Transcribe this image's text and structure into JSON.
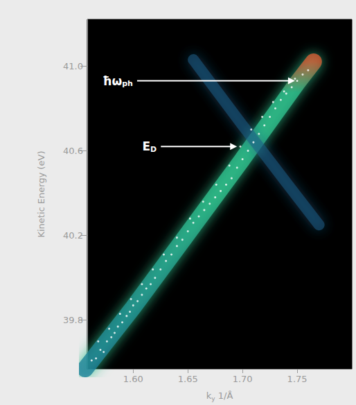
{
  "chart_data": {
    "type": "scatter",
    "x_label": "ky 1/Å",
    "y_label": "Kinetic Energy (eV)",
    "xlim": [
      1.558,
      1.8
    ],
    "ylim": [
      39.57,
      41.22
    ],
    "xticks": [
      {
        "value": 1.6,
        "label": "1.60"
      },
      1.65,
      {
        "value": 1.7,
        "label": "1.70"
      },
      1.75
    ],
    "yticks": [
      {
        "value": 39.8,
        "label": "39.8"
      },
      {
        "value": 40.2,
        "label": "40.2"
      },
      {
        "value": 40.6,
        "label": "40.6"
      },
      {
        "value": 41.0,
        "label": "41.0"
      }
    ],
    "grid": false,
    "series": [
      {
        "type": "line",
        "color": "#2fbf8c",
        "x": [
          1.556,
          1.6,
          1.65,
          1.7,
          1.75,
          1.765
        ],
        "y": [
          39.57,
          39.86,
          40.21,
          40.56,
          40.92,
          41.02
        ]
      },
      {
        "type": "line",
        "color": "#1d5d86",
        "x": [
          1.655,
          1.7,
          1.74,
          1.77
        ],
        "y": [
          41.03,
          40.72,
          40.45,
          40.25
        ]
      },
      {
        "type": "scatter",
        "color": "#ffffff",
        "marker": "circle",
        "x": [
          1.562,
          1.566,
          1.57,
          1.573,
          1.576,
          1.58,
          1.583,
          1.586,
          1.59,
          1.594,
          1.597,
          1.6,
          1.604,
          1.608,
          1.612,
          1.616,
          1.62,
          1.625,
          1.63,
          1.635,
          1.64,
          1.645,
          1.65,
          1.655,
          1.66,
          1.665,
          1.67,
          1.675,
          1.68,
          1.685,
          1.69,
          1.695,
          1.7,
          1.705,
          1.71,
          1.715,
          1.72,
          1.725,
          1.73,
          1.735,
          1.74,
          1.745,
          1.75,
          1.755,
          1.76
        ],
        "y": [
          39.61,
          39.62,
          39.66,
          39.65,
          39.7,
          39.72,
          39.74,
          39.77,
          39.79,
          39.82,
          39.84,
          39.87,
          39.89,
          39.92,
          39.95,
          39.97,
          40.0,
          40.04,
          40.08,
          40.11,
          40.15,
          40.18,
          40.22,
          40.26,
          40.29,
          40.32,
          40.35,
          40.38,
          40.41,
          40.44,
          40.47,
          40.52,
          40.56,
          40.6,
          40.64,
          40.68,
          40.72,
          40.76,
          40.8,
          40.84,
          40.87,
          40.9,
          40.93,
          40.96,
          40.98
        ]
      },
      {
        "type": "scatter",
        "color": "#ffffff",
        "marker": "circle",
        "x": [
          1.568,
          1.578,
          1.588,
          1.598,
          1.608,
          1.618,
          1.628,
          1.64,
          1.652,
          1.664,
          1.676,
          1.688,
          1.698,
          1.708,
          1.718,
          1.728,
          1.738,
          1.748
        ],
        "y": [
          39.7,
          39.76,
          39.83,
          39.9,
          39.97,
          40.04,
          40.11,
          40.19,
          40.28,
          40.36,
          40.44,
          40.53,
          40.62,
          40.7,
          40.76,
          40.83,
          40.88,
          40.94
        ]
      }
    ],
    "annotations": [
      {
        "text": "ħω",
        "subscript": "ph",
        "x": 1.748,
        "y": 40.93
      },
      {
        "text": "E",
        "subscript": "D",
        "x": 1.695,
        "y": 40.62
      }
    ]
  }
}
